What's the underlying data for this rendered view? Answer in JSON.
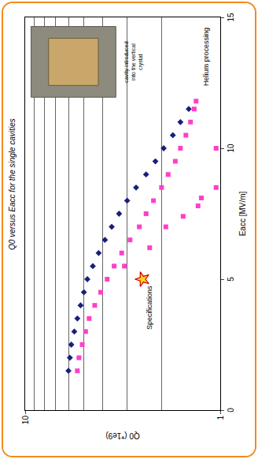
{
  "chart_data": {
    "type": "scatter",
    "title": "Q0 versus Eacc for the single cavities",
    "x_label": "Eacc [MV/m]",
    "y_label": "Q0 (*1e9)",
    "log": "y",
    "grid": true,
    "xlim": [
      0,
      15
    ],
    "xticks": [
      0,
      5,
      10,
      15
    ],
    "ylim": [
      1,
      10
    ],
    "yticks": [
      1,
      10
    ],
    "series": [
      {
        "color": "#1a1f7a",
        "marker": "diamond",
        "x": [
          1.5,
          2,
          2.5,
          3,
          3.5,
          4,
          4.5,
          5,
          5.5,
          6,
          6.5,
          7,
          7.5,
          8,
          8.5,
          9,
          9.5,
          10,
          10.5,
          11,
          11.5
        ],
        "values": [
          6.0,
          5.9,
          5.8,
          5.6,
          5.4,
          5.2,
          5.0,
          4.8,
          4.5,
          4.2,
          3.9,
          3.6,
          3.3,
          3.0,
          2.7,
          2.4,
          2.15,
          1.95,
          1.75,
          1.6,
          1.45
        ]
      },
      {
        "color": "#ff3fc8",
        "marker": "square",
        "x": [
          1.5,
          2,
          2.5,
          3,
          3.5,
          4,
          4.5,
          5,
          5.5,
          6,
          6.5,
          7,
          7.5,
          8,
          8.5,
          9,
          9.5,
          10,
          10.5,
          11,
          11.5,
          11.8,
          5.5,
          6.2,
          7,
          7.4,
          7.8,
          8.1,
          8.5,
          10
        ],
        "values": [
          5.4,
          5.3,
          5.1,
          4.9,
          4.7,
          4.4,
          4.1,
          3.8,
          3.5,
          3.2,
          2.9,
          2.6,
          2.4,
          2.2,
          2.0,
          1.85,
          1.7,
          1.6,
          1.5,
          1.42,
          1.36,
          1.33,
          3.1,
          2.3,
          1.9,
          1.55,
          1.3,
          1.25,
          1.05,
          1.05
        ]
      },
      {
        "color": "#ffd21f",
        "marker": "star",
        "x": [
          5
        ],
        "values": [
          2.5
        ]
      }
    ],
    "annotations": [
      {
        "text": "Specifications",
        "x": 5,
        "y": 2.5
      },
      {
        "text": "Helium processing",
        "x": 13.5,
        "y": 1.18
      },
      {
        "text": "cavity introduced into the vertical crystat",
        "x": 13.3,
        "y": 3.2
      }
    ]
  }
}
